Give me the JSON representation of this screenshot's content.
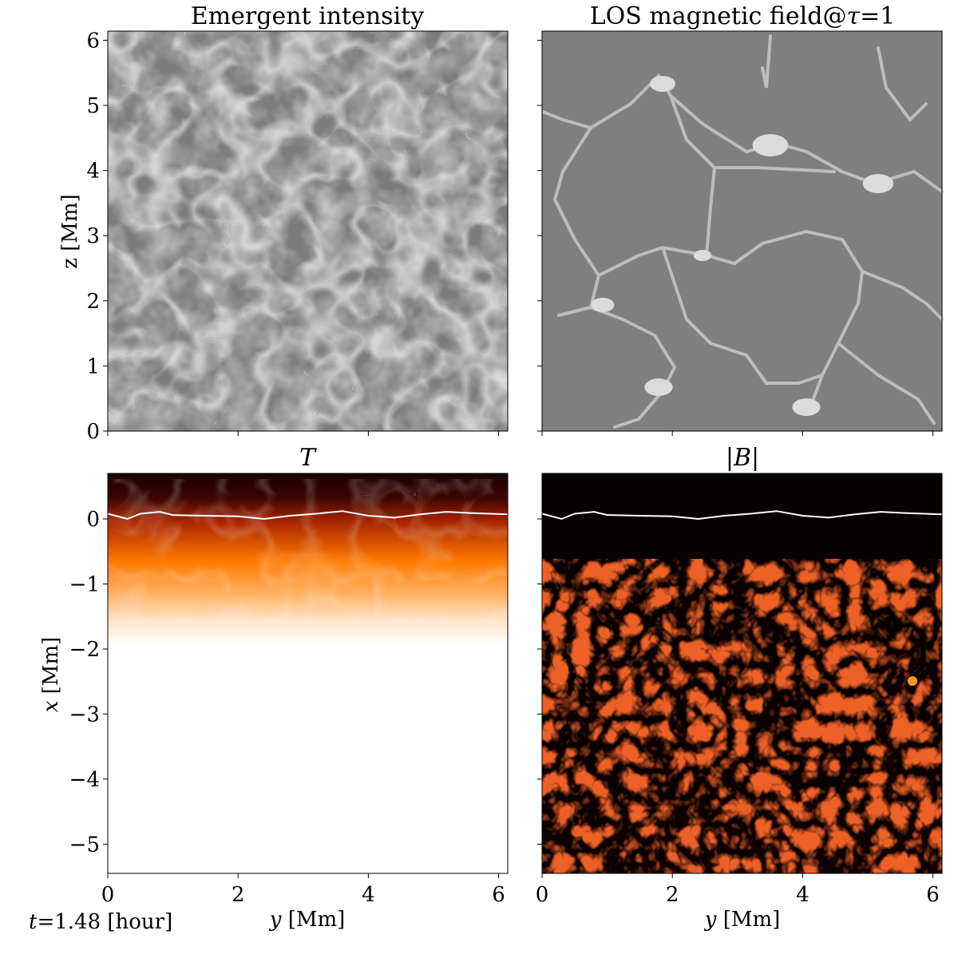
{
  "chart_data": [
    {
      "type": "heatmap",
      "title": "Emergent intensity",
      "xlabel": "",
      "ylabel": "z [Mm]",
      "xlim": [
        0,
        6.14
      ],
      "ylim": [
        0,
        6.14
      ],
      "x_ticks": [],
      "y_ticks": [
        "0",
        "1",
        "2",
        "3",
        "4",
        "5",
        "6"
      ],
      "colormap": "grayscale",
      "description_values": "granulation pattern, bright granules separated by dark intergranular lanes"
    },
    {
      "type": "heatmap",
      "title": "LOS magnetic field@τ=1",
      "xlabel": "",
      "ylabel": "",
      "xlim": [
        0,
        6.14
      ],
      "ylim": [
        0,
        6.14
      ],
      "x_ticks": [],
      "y_ticks": [],
      "colormap": "grayscale"
    },
    {
      "type": "heatmap",
      "title": "T",
      "xlabel": "y [Mm]",
      "ylabel": "x [Mm]",
      "xlim": [
        0,
        6.14
      ],
      "ylim": [
        -5.45,
        0.7
      ],
      "x_ticks": [
        "0",
        "2",
        "4",
        "6"
      ],
      "y_ticks": [
        "0",
        "−1",
        "−2",
        "−3",
        "−4",
        "−5"
      ],
      "colormap": "gist_heat_r",
      "tau1_line_x": [
        0,
        0.3,
        0.5,
        0.8,
        1.0,
        1.5,
        2.0,
        2.4,
        2.8,
        3.2,
        3.6,
        4.0,
        4.4,
        4.8,
        5.2,
        5.6,
        6.14
      ],
      "tau1_line_y": [
        0.08,
        0.0,
        0.08,
        0.11,
        0.06,
        0.05,
        0.04,
        0.0,
        0.05,
        0.08,
        0.12,
        0.05,
        0.02,
        0.07,
        0.11,
        0.09,
        0.07
      ]
    },
    {
      "type": "heatmap",
      "title": "|B|",
      "xlabel": "y [Mm]",
      "ylabel": "",
      "xlim": [
        0,
        6.14
      ],
      "ylim": [
        -5.45,
        0.7
      ],
      "x_ticks": [
        "0",
        "2",
        "4",
        "6"
      ],
      "y_ticks": [],
      "colormap": "hot",
      "tau1_line_x": [
        0,
        0.3,
        0.5,
        0.8,
        1.0,
        1.5,
        2.0,
        2.4,
        2.8,
        3.2,
        3.6,
        4.0,
        4.4,
        4.8,
        5.2,
        5.6,
        6.14
      ],
      "tau1_line_y": [
        0.08,
        0.0,
        0.08,
        0.11,
        0.06,
        0.05,
        0.04,
        0.0,
        0.05,
        0.08,
        0.12,
        0.05,
        0.02,
        0.07,
        0.11,
        0.09,
        0.07
      ]
    }
  ],
  "footer": {
    "time_var": "t",
    "time_value": "=1.48 [hour]"
  },
  "labels": {
    "title_tl": "Emergent intensity",
    "title_tr_prefix": "LOS magnetic field@",
    "title_tr_tau": "τ",
    "title_tr_suffix": "=1",
    "title_bl": "T",
    "title_br": "|B|",
    "ylabel_top": "z [Mm]",
    "ylabel_bottom_var": "x",
    "ylabel_bottom_unit": " [Mm]",
    "xlabel_var": "y",
    "xlabel_unit": " [Mm]"
  }
}
